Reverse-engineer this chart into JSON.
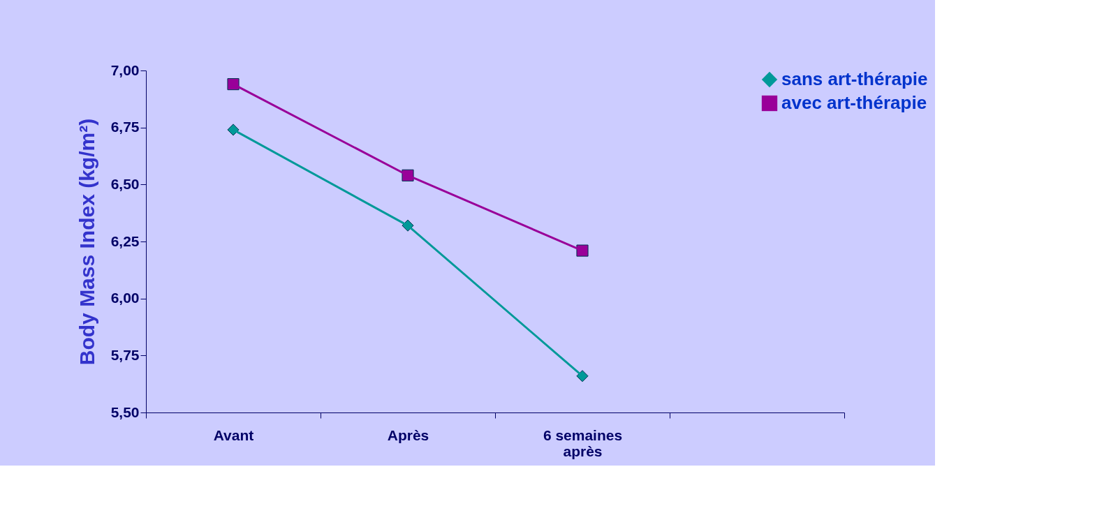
{
  "chart_data": {
    "type": "line",
    "categories": [
      "Avant",
      "Après",
      "6 semaines après",
      null
    ],
    "ylabel": "Body Mass Index (kg/m²)",
    "series": [
      {
        "name": "sans art-thérapie",
        "color": "#009999",
        "marker": "diamond",
        "values": [
          6.74,
          6.32,
          5.66,
          null
        ]
      },
      {
        "name": "avec art-thérapie",
        "color": "#990099",
        "marker": "square",
        "values": [
          6.94,
          6.54,
          6.21,
          null
        ]
      }
    ],
    "ylim": [
      5.5,
      7.0
    ],
    "yticks": [
      {
        "value": 5.5,
        "label": "5,50"
      },
      {
        "value": 5.75,
        "label": "5,75"
      },
      {
        "value": 6.0,
        "label": "6,00"
      },
      {
        "value": 6.25,
        "label": "6,25"
      },
      {
        "value": 6.5,
        "label": "6,50"
      },
      {
        "value": 6.75,
        "label": "6,75"
      },
      {
        "value": 7.0,
        "label": "7,00"
      }
    ],
    "grid": false,
    "legend": "top right",
    "line_style": "solid"
  }
}
